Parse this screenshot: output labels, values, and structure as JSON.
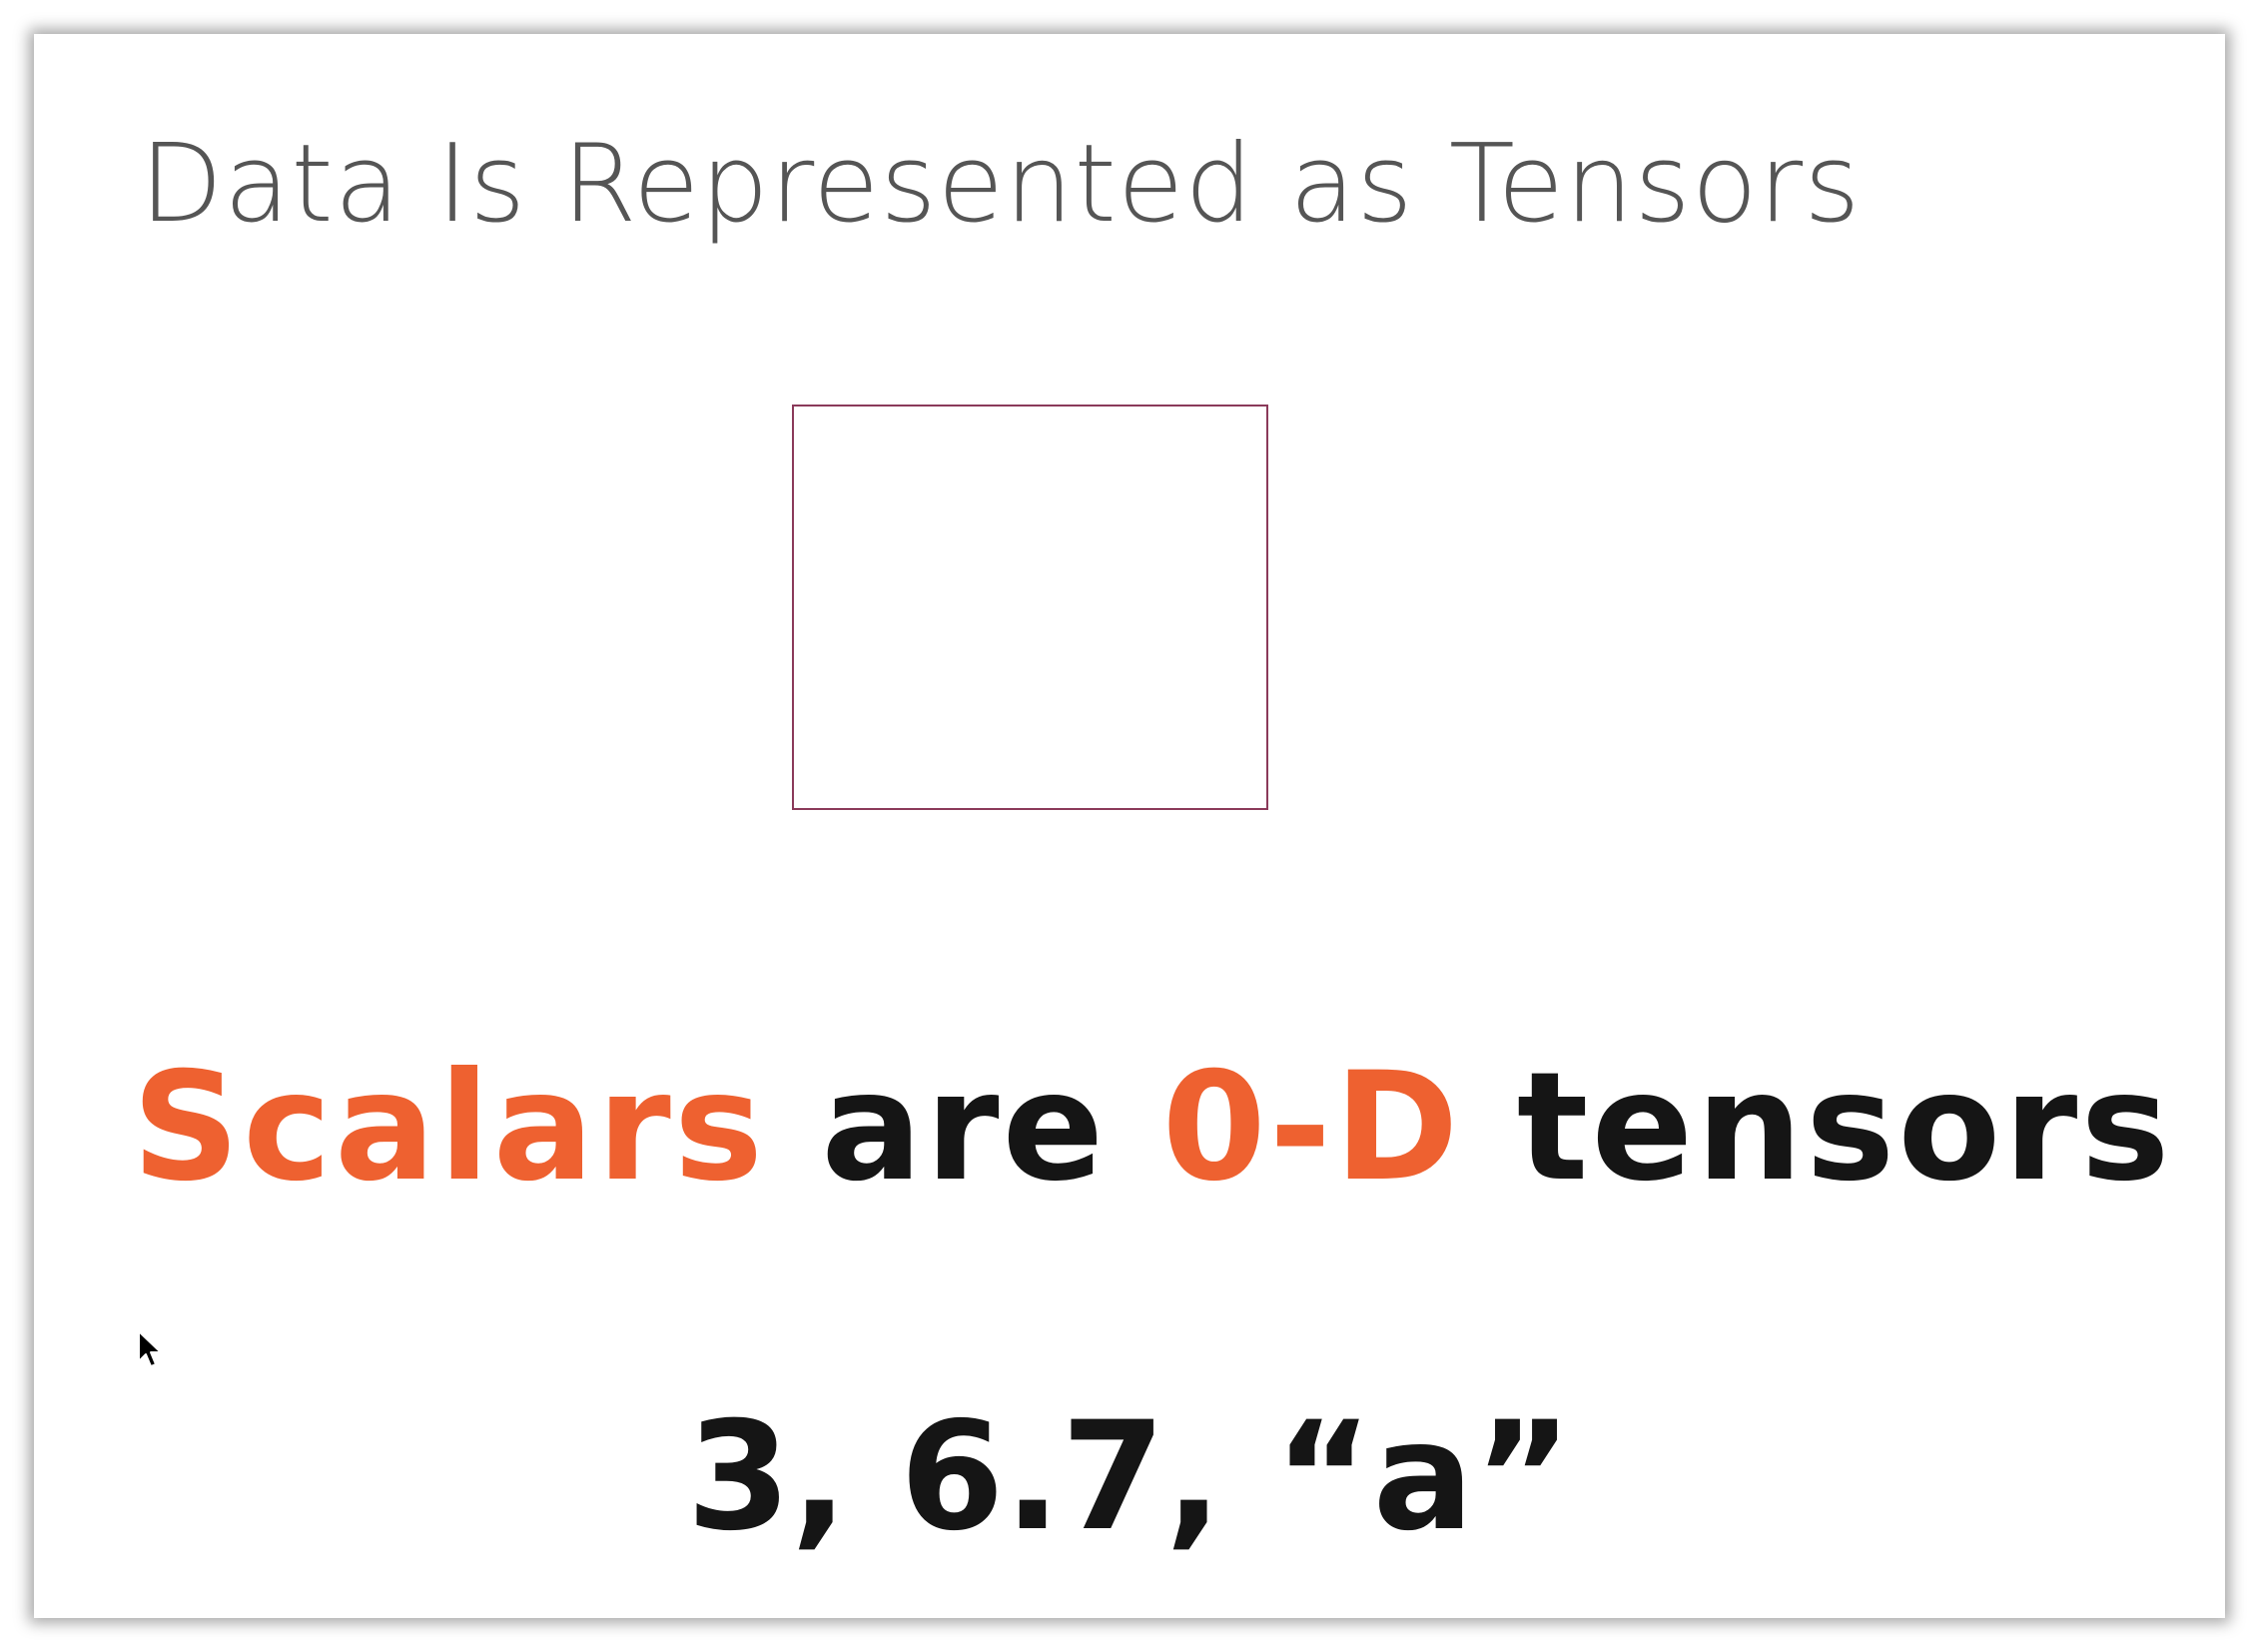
{
  "slide": {
    "title": "Data Is Represented as Tensors",
    "headline": {
      "part1": "Scalars",
      "part2": " are ",
      "part3": "0-D",
      "part4": " tensors"
    },
    "examples": "3, 6.7, “a”"
  },
  "colors": {
    "accent": "#ee6130",
    "text": "#151515",
    "title": "#555555",
    "box_border": "#8b3a5a"
  },
  "icons": {
    "cursor": "mouse-pointer-icon"
  }
}
